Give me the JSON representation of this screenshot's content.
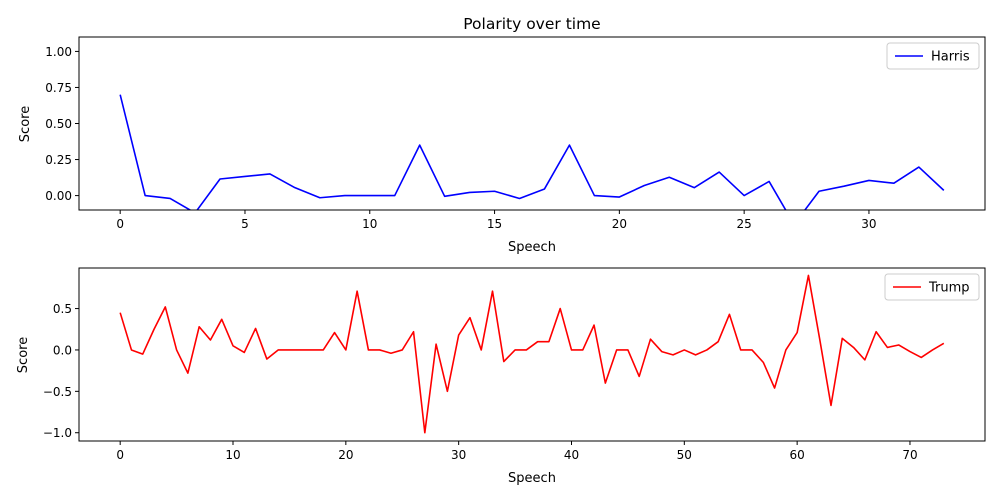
{
  "chart_data": [
    {
      "type": "line",
      "title": "Polarity over time",
      "xlabel": "Speech",
      "ylabel": "Score",
      "xlim": [
        -1.65,
        34.65
      ],
      "ylim": [
        -0.1,
        1.1
      ],
      "xticks": [
        0,
        5,
        10,
        15,
        20,
        25,
        30
      ],
      "yticks": [
        0.0,
        0.25,
        0.5,
        0.75,
        1.0
      ],
      "ytick_labels": [
        "0.00",
        "0.25",
        "0.50",
        "0.75",
        "1.00"
      ],
      "legend_position": "upper right",
      "grid": false,
      "series": [
        {
          "name": "Harris",
          "color": "#0000ff",
          "x": [
            0,
            1,
            2,
            3,
            4,
            5,
            6,
            7,
            8,
            9,
            10,
            11,
            12,
            13,
            14,
            15,
            16,
            17,
            18,
            19,
            20,
            21,
            22,
            23,
            24,
            25,
            26,
            27,
            28,
            29,
            30,
            31,
            32,
            33
          ],
          "values": [
            0.7,
            0.0,
            -0.02,
            -0.12,
            0.115,
            0.133,
            0.15,
            0.055,
            -0.015,
            0.0,
            0.0,
            0.0,
            0.35,
            -0.005,
            0.022,
            0.03,
            -0.02,
            0.046,
            0.35,
            0.0,
            -0.01,
            0.07,
            0.127,
            0.055,
            0.163,
            0.0,
            0.098,
            -0.2,
            0.03,
            0.065,
            0.105,
            0.086,
            0.198,
            0.036
          ]
        }
      ]
    },
    {
      "type": "line",
      "title": "",
      "xlabel": "Speech",
      "ylabel": "Score",
      "xlim": [
        -3.65,
        76.65
      ],
      "ylim": [
        -1.1,
        0.99
      ],
      "xticks": [
        0,
        10,
        20,
        30,
        40,
        50,
        60,
        70
      ],
      "yticks": [
        -1.0,
        -0.5,
        0.0,
        0.5
      ],
      "ytick_labels": [
        "−1.0",
        "−0.5",
        "0.0",
        "0.5"
      ],
      "legend_position": "upper right",
      "grid": false,
      "series": [
        {
          "name": "Trump",
          "color": "#ff0000",
          "x": [
            0,
            1,
            2,
            3,
            4,
            5,
            6,
            7,
            8,
            9,
            10,
            11,
            12,
            13,
            14,
            15,
            16,
            17,
            18,
            19,
            20,
            21,
            22,
            23,
            24,
            25,
            26,
            27,
            28,
            29,
            30,
            31,
            32,
            33,
            34,
            35,
            36,
            37,
            38,
            39,
            40,
            41,
            42,
            43,
            44,
            45,
            46,
            47,
            48,
            49,
            50,
            51,
            52,
            53,
            54,
            55,
            56,
            57,
            58,
            59,
            60,
            61,
            62,
            63,
            64,
            65,
            66,
            67,
            68,
            69,
            70,
            71,
            72,
            73
          ],
          "values": [
            0.45,
            0.0,
            -0.05,
            0.25,
            0.52,
            0.0,
            -0.28,
            0.28,
            0.12,
            0.37,
            0.05,
            -0.03,
            0.26,
            -0.11,
            0.0,
            0.0,
            0.0,
            0.0,
            0.0,
            0.21,
            0.0,
            0.71,
            0.0,
            0.0,
            -0.04,
            0.0,
            0.22,
            -1.0,
            0.07,
            -0.5,
            0.18,
            0.39,
            0.0,
            0.71,
            -0.14,
            0.0,
            0.0,
            0.1,
            0.1,
            0.5,
            0.0,
            0.0,
            0.3,
            -0.4,
            0.0,
            0.0,
            -0.32,
            0.13,
            -0.02,
            -0.06,
            0.0,
            -0.06,
            0.0,
            0.1,
            0.43,
            0.0,
            0.0,
            -0.15,
            -0.46,
            0.0,
            0.21,
            0.9,
            0.13,
            -0.67,
            0.14,
            0.03,
            -0.12,
            0.22,
            0.03,
            0.06,
            -0.02,
            -0.09,
            0.0,
            0.08
          ]
        }
      ]
    }
  ]
}
